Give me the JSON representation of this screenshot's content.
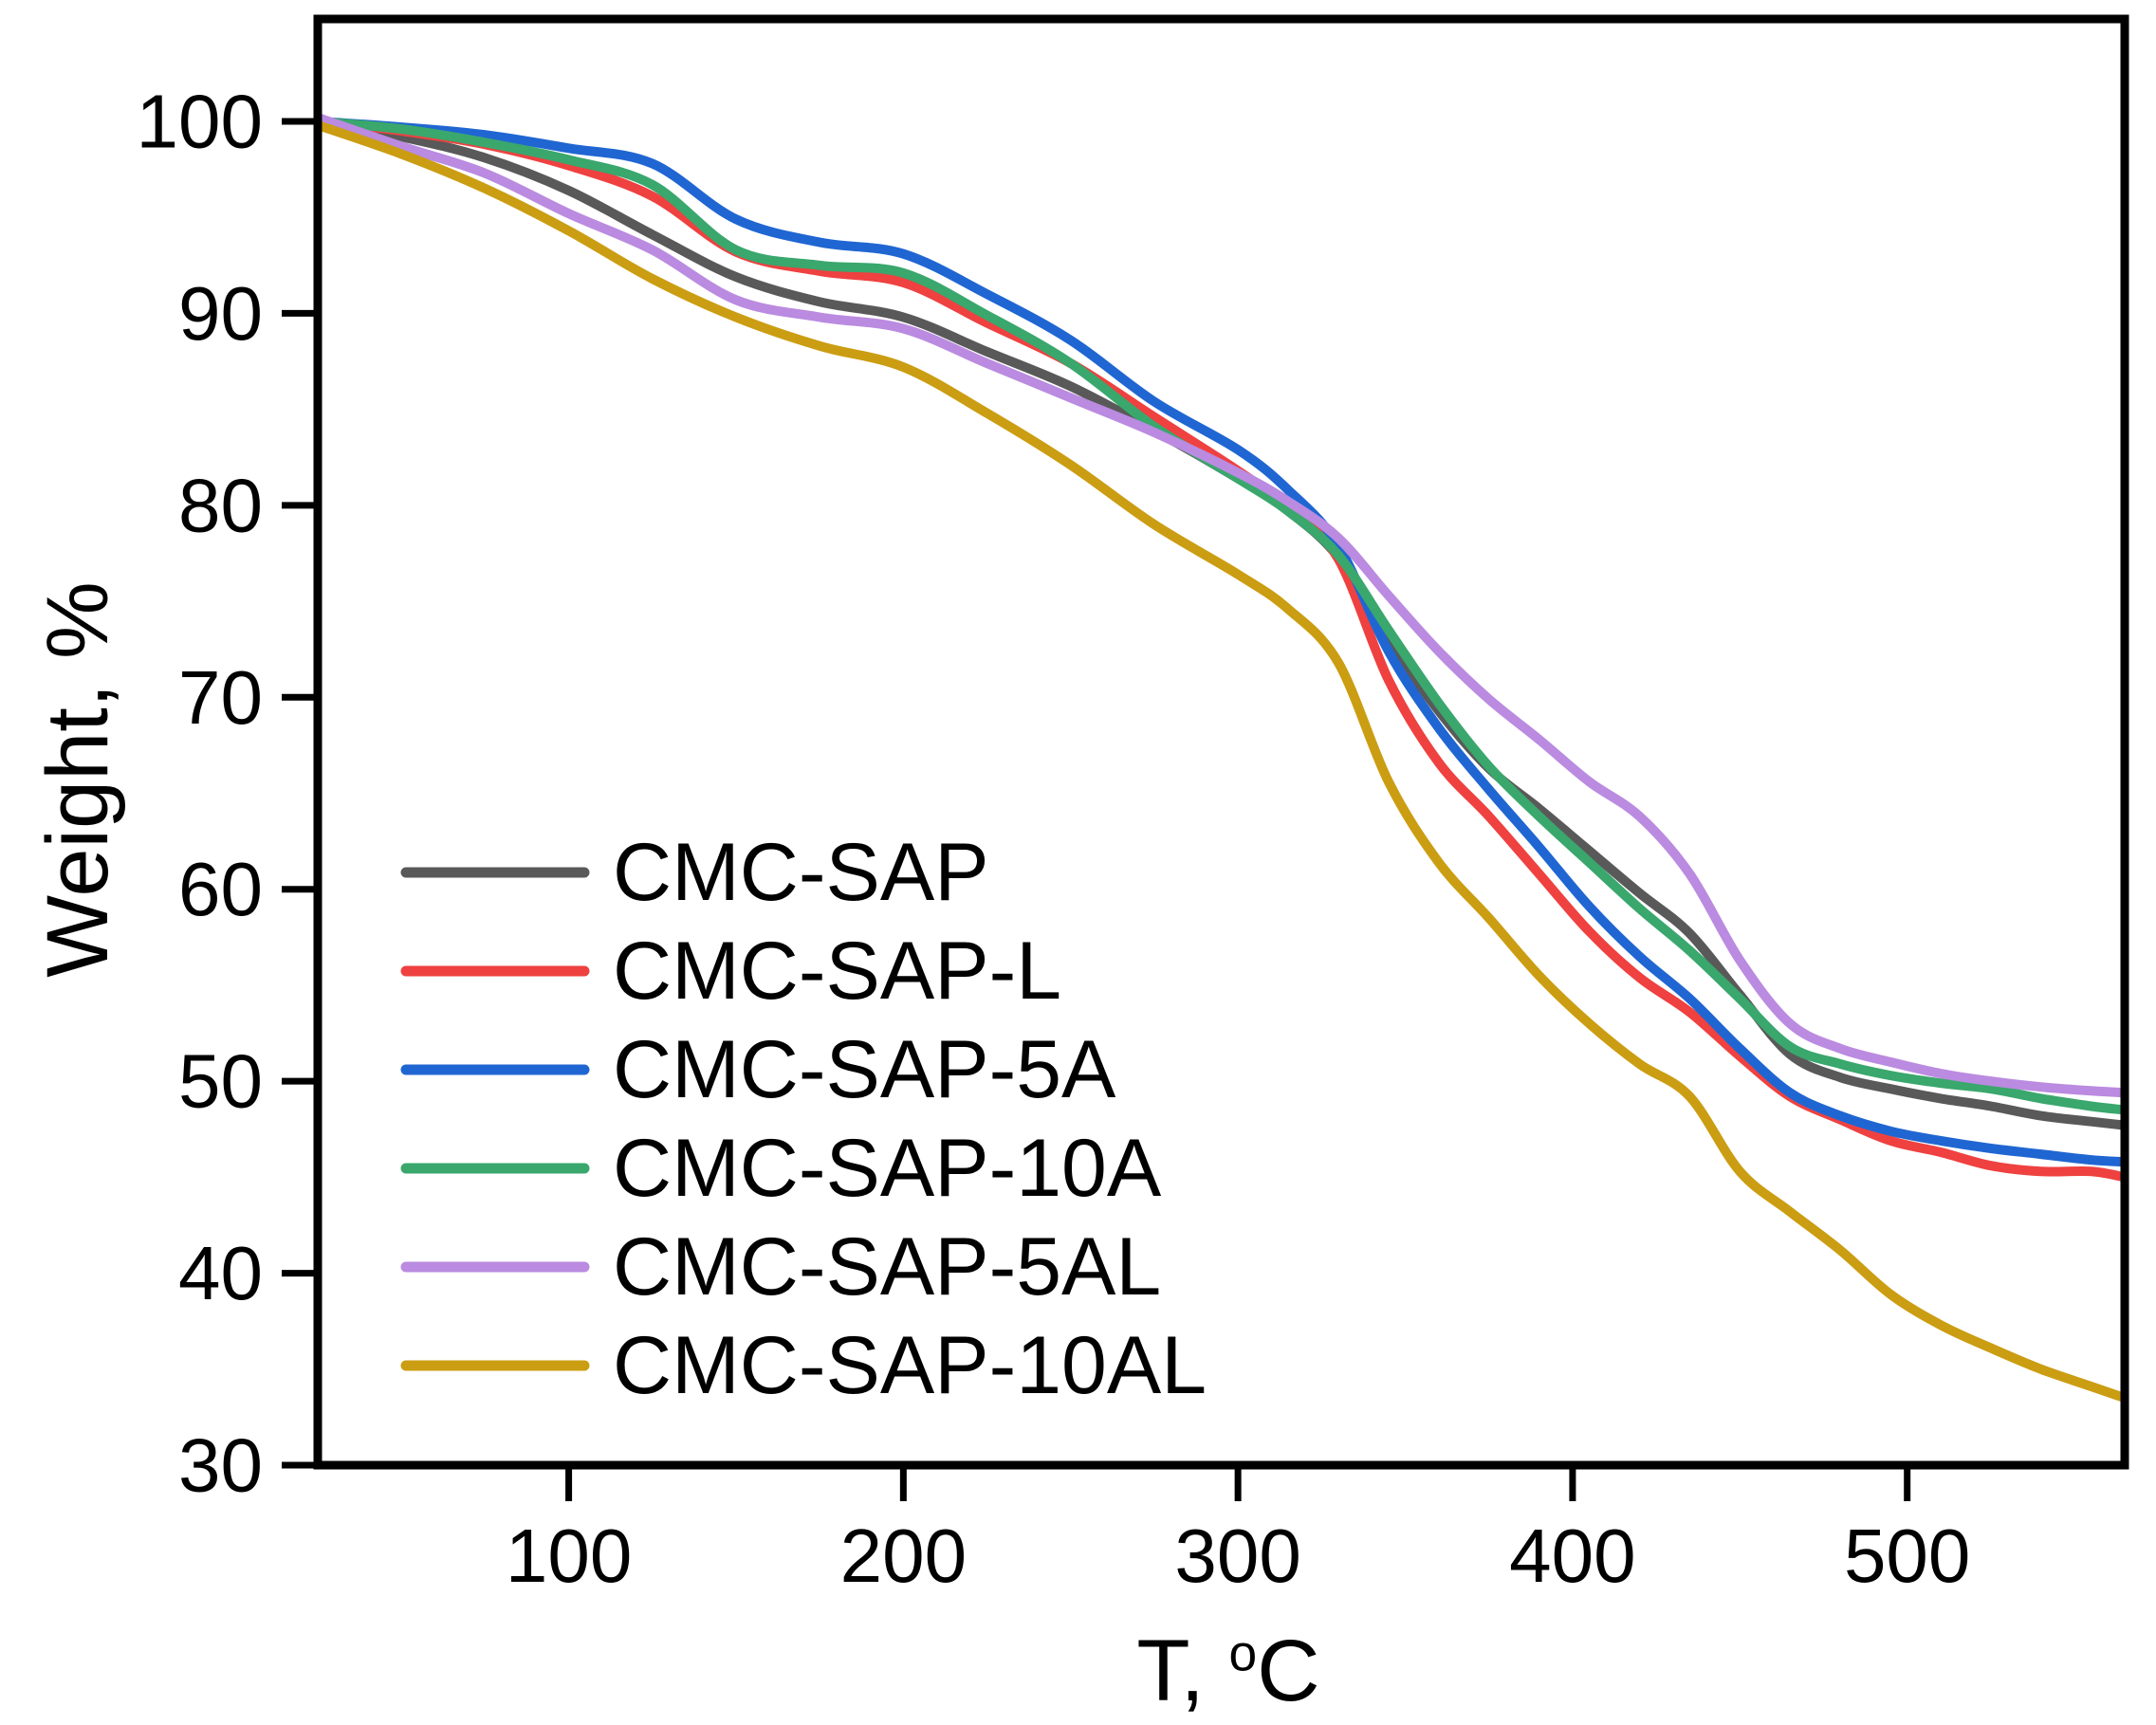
{
  "chart_data": {
    "type": "line",
    "title": "",
    "ylabel": "Weight, %",
    "xlabel_text": "T, °C",
    "xlabel_parts": {
      "prefix": "T, ",
      "sup": "o",
      "suffix": "C"
    },
    "xlim": [
      25,
      565
    ],
    "ylim": [
      30,
      100
    ],
    "x_ticks": [
      "100",
      "200",
      "300",
      "400",
      "500"
    ],
    "y_ticks": [
      "30",
      "40",
      "50",
      "60",
      "70",
      "80",
      "90",
      "100"
    ],
    "grid": false,
    "legend_position": "inside-left-middle",
    "frame_color": "#000000",
    "temperatures_c": [
      25,
      50,
      75,
      100,
      125,
      150,
      175,
      200,
      225,
      250,
      275,
      300,
      315,
      330,
      345,
      360,
      375,
      390,
      405,
      420,
      435,
      450,
      465,
      480,
      495,
      510,
      525,
      540,
      555,
      565
    ],
    "series": [
      {
        "name": "CMC-SAP",
        "color": "#595959",
        "weights_pct": [
          100.0,
          99.2,
          98.1,
          96.4,
          94.1,
          91.9,
          90.6,
          89.8,
          88.0,
          86.2,
          83.9,
          81.4,
          79.7,
          77.3,
          73.0,
          69.3,
          66.3,
          64.2,
          62.0,
          59.8,
          57.7,
          54.5,
          51.4,
          50.2,
          49.6,
          49.1,
          48.7,
          48.2,
          47.9,
          47.7
        ]
      },
      {
        "name": "CMC-SAP-L",
        "color": "#ee4140",
        "weights_pct": [
          100.0,
          99.5,
          98.8,
          97.7,
          96.1,
          93.2,
          92.2,
          91.6,
          89.5,
          87.4,
          84.6,
          81.8,
          79.9,
          77.2,
          70.9,
          66.6,
          63.8,
          60.8,
          57.8,
          55.4,
          53.6,
          51.3,
          49.2,
          48.0,
          46.9,
          46.3,
          45.6,
          45.3,
          45.3,
          45.0
        ]
      },
      {
        "name": "CMC-SAP-5A",
        "color": "#2066d2",
        "weights_pct": [
          100.0,
          99.7,
          99.3,
          98.6,
          97.8,
          94.9,
          93.7,
          93.1,
          91.0,
          88.6,
          85.4,
          82.9,
          80.8,
          77.9,
          72.4,
          68.4,
          65.2,
          62.2,
          59.1,
          56.5,
          54.3,
          51.7,
          49.4,
          48.2,
          47.4,
          46.9,
          46.5,
          46.2,
          45.9,
          45.8
        ]
      },
      {
        "name": "CMC-SAP-10A",
        "color": "#3aa76d",
        "weights_pct": [
          100.0,
          99.6,
          98.9,
          98.0,
          96.7,
          93.3,
          92.5,
          92.1,
          89.9,
          87.4,
          84.1,
          81.4,
          79.7,
          77.4,
          73.5,
          69.7,
          66.4,
          63.8,
          61.4,
          59.0,
          56.8,
          54.3,
          51.8,
          50.9,
          50.3,
          49.9,
          49.6,
          49.1,
          48.7,
          48.5
        ]
      },
      {
        "name": "CMC-SAP-5AL",
        "color": "#ba8be0",
        "weights_pct": [
          100.2,
          98.7,
          97.3,
          95.2,
          93.3,
          90.7,
          89.8,
          89.2,
          87.4,
          85.6,
          83.8,
          81.7,
          80.2,
          78.3,
          75.3,
          72.4,
          69.9,
          67.8,
          65.6,
          63.8,
          60.8,
          56.3,
          53.0,
          51.7,
          51.0,
          50.4,
          50.0,
          49.7,
          49.5,
          49.4
        ]
      },
      {
        "name": "CMC-SAP-10AL",
        "color": "#cb9d12",
        "weights_pct": [
          99.8,
          98.3,
          96.5,
          94.3,
          91.8,
          89.8,
          88.3,
          87.2,
          84.8,
          82.1,
          79.0,
          76.4,
          74.6,
          71.8,
          65.6,
          61.4,
          58.5,
          55.5,
          53.0,
          50.9,
          49.2,
          45.3,
          43.2,
          41.2,
          38.9,
          37.3,
          36.1,
          35.0,
          34.1,
          33.5
        ]
      }
    ]
  }
}
